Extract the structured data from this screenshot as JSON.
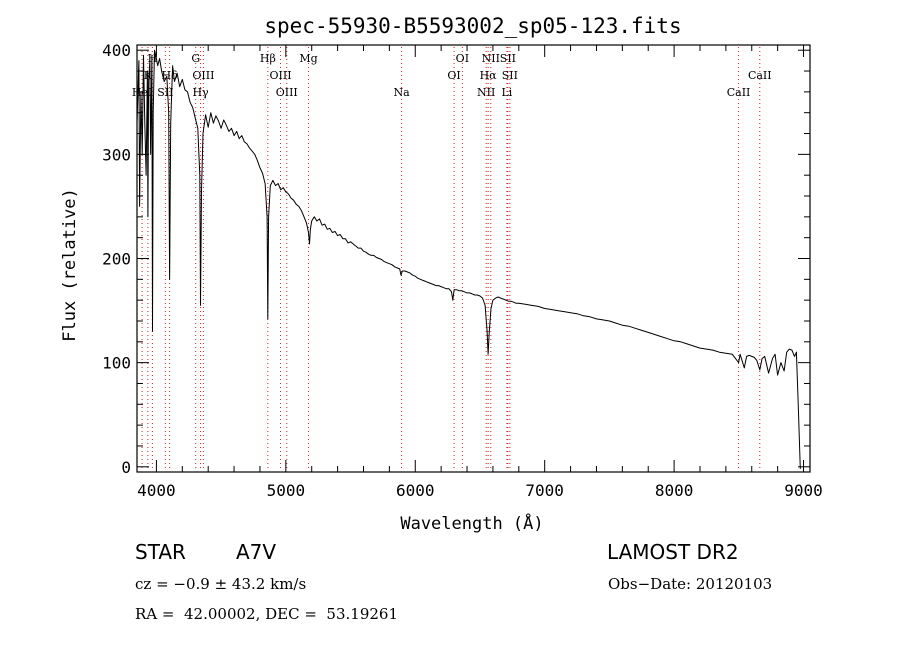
{
  "chart_data": {
    "type": "line",
    "title": "spec-55930-B5593002_sp05-123.fits",
    "xlabel": "Wavelength (Å)",
    "ylabel": "Flux (relative)",
    "xlim": [
      3850,
      9050
    ],
    "ylim": [
      -5,
      405
    ],
    "x_ticks": [
      4000,
      5000,
      6000,
      7000,
      8000,
      9000
    ],
    "x_tick_labels": [
      "4000",
      "5000",
      "6000",
      "7000",
      "8000",
      "9000"
    ],
    "y_ticks": [
      0,
      100,
      200,
      300,
      400
    ],
    "y_tick_labels": [
      "0",
      "100",
      "200",
      "300",
      "400"
    ],
    "grid": false,
    "line_color": "#000000",
    "marker_color": "#cc2222",
    "series": [
      {
        "name": "flux",
        "points": [
          [
            3850,
            330
          ],
          [
            3865,
            390
          ],
          [
            3870,
            250
          ],
          [
            3880,
            360
          ],
          [
            3890,
            300
          ],
          [
            3900,
            395
          ],
          [
            3910,
            330
          ],
          [
            3920,
            280
          ],
          [
            3930,
            380
          ],
          [
            3934,
            240
          ],
          [
            3940,
            370
          ],
          [
            3950,
            390
          ],
          [
            3955,
            300
          ],
          [
            3965,
            395
          ],
          [
            3970,
            130
          ],
          [
            3975,
            340
          ],
          [
            3985,
            400
          ],
          [
            3995,
            395
          ],
          [
            4010,
            385
          ],
          [
            4025,
            392
          ],
          [
            4040,
            380
          ],
          [
            4060,
            370
          ],
          [
            4080,
            375
          ],
          [
            4095,
            340
          ],
          [
            4102,
            180
          ],
          [
            4110,
            330
          ],
          [
            4125,
            385
          ],
          [
            4140,
            370
          ],
          [
            4160,
            378
          ],
          [
            4180,
            365
          ],
          [
            4200,
            372
          ],
          [
            4220,
            362
          ],
          [
            4240,
            360
          ],
          [
            4260,
            350
          ],
          [
            4280,
            345
          ],
          [
            4300,
            335
          ],
          [
            4320,
            325
          ],
          [
            4335,
            280
          ],
          [
            4341,
            155
          ],
          [
            4348,
            265
          ],
          [
            4360,
            320
          ],
          [
            4380,
            338
          ],
          [
            4400,
            326
          ],
          [
            4420,
            340
          ],
          [
            4440,
            330
          ],
          [
            4460,
            337
          ],
          [
            4480,
            332
          ],
          [
            4500,
            325
          ],
          [
            4520,
            333
          ],
          [
            4540,
            328
          ],
          [
            4560,
            322
          ],
          [
            4580,
            325
          ],
          [
            4600,
            318
          ],
          [
            4620,
            322
          ],
          [
            4640,
            315
          ],
          [
            4660,
            318
          ],
          [
            4680,
            312
          ],
          [
            4700,
            310
          ],
          [
            4720,
            306
          ],
          [
            4740,
            303
          ],
          [
            4760,
            300
          ],
          [
            4780,
            294
          ],
          [
            4800,
            287
          ],
          [
            4820,
            282
          ],
          [
            4840,
            272
          ],
          [
            4855,
            240
          ],
          [
            4861,
            142
          ],
          [
            4867,
            240
          ],
          [
            4880,
            270
          ],
          [
            4900,
            275
          ],
          [
            4920,
            270
          ],
          [
            4940,
            272
          ],
          [
            4960,
            266
          ],
          [
            4980,
            268
          ],
          [
            5000,
            264
          ],
          [
            5020,
            262
          ],
          [
            5040,
            258
          ],
          [
            5060,
            256
          ],
          [
            5080,
            252
          ],
          [
            5100,
            250
          ],
          [
            5120,
            246
          ],
          [
            5140,
            240
          ],
          [
            5160,
            234
          ],
          [
            5175,
            225
          ],
          [
            5183,
            214
          ],
          [
            5190,
            228
          ],
          [
            5200,
            236
          ],
          [
            5220,
            240
          ],
          [
            5240,
            236
          ],
          [
            5260,
            238
          ],
          [
            5280,
            232
          ],
          [
            5300,
            233
          ],
          [
            5320,
            228
          ],
          [
            5340,
            229
          ],
          [
            5360,
            225
          ],
          [
            5380,
            226
          ],
          [
            5400,
            222
          ],
          [
            5420,
            223
          ],
          [
            5440,
            219
          ],
          [
            5460,
            219
          ],
          [
            5480,
            215
          ],
          [
            5500,
            216
          ],
          [
            5520,
            214
          ],
          [
            5540,
            212
          ],
          [
            5560,
            210
          ],
          [
            5580,
            210
          ],
          [
            5600,
            207
          ],
          [
            5620,
            206
          ],
          [
            5640,
            204
          ],
          [
            5660,
            203
          ],
          [
            5680,
            203
          ],
          [
            5700,
            201
          ],
          [
            5720,
            200
          ],
          [
            5740,
            199
          ],
          [
            5760,
            197
          ],
          [
            5780,
            196
          ],
          [
            5800,
            195
          ],
          [
            5820,
            194
          ],
          [
            5840,
            192
          ],
          [
            5860,
            191
          ],
          [
            5880,
            190
          ],
          [
            5890,
            184
          ],
          [
            5900,
            188
          ],
          [
            5920,
            188
          ],
          [
            5940,
            187
          ],
          [
            5960,
            186
          ],
          [
            5980,
            184
          ],
          [
            6000,
            183
          ],
          [
            6020,
            181
          ],
          [
            6040,
            180
          ],
          [
            6060,
            179
          ],
          [
            6080,
            178
          ],
          [
            6100,
            177
          ],
          [
            6120,
            176
          ],
          [
            6140,
            175
          ],
          [
            6160,
            174
          ],
          [
            6180,
            174
          ],
          [
            6200,
            173
          ],
          [
            6220,
            172
          ],
          [
            6240,
            171
          ],
          [
            6260,
            171
          ],
          [
            6280,
            168
          ],
          [
            6290,
            160
          ],
          [
            6300,
            170
          ],
          [
            6320,
            170
          ],
          [
            6340,
            169
          ],
          [
            6360,
            169
          ],
          [
            6380,
            168
          ],
          [
            6400,
            167
          ],
          [
            6420,
            167
          ],
          [
            6440,
            166
          ],
          [
            6460,
            165
          ],
          [
            6480,
            165
          ],
          [
            6500,
            164
          ],
          [
            6520,
            162
          ],
          [
            6540,
            155
          ],
          [
            6555,
            130
          ],
          [
            6563,
            108
          ],
          [
            6572,
            130
          ],
          [
            6585,
            152
          ],
          [
            6600,
            160
          ],
          [
            6620,
            162
          ],
          [
            6640,
            163
          ],
          [
            6660,
            162
          ],
          [
            6680,
            161
          ],
          [
            6700,
            160
          ],
          [
            6720,
            159
          ],
          [
            6740,
            159
          ],
          [
            6760,
            158
          ],
          [
            6780,
            157
          ],
          [
            6800,
            157
          ],
          [
            6850,
            156
          ],
          [
            6900,
            155
          ],
          [
            6950,
            154
          ],
          [
            7000,
            152
          ],
          [
            7050,
            151
          ],
          [
            7100,
            150
          ],
          [
            7150,
            149
          ],
          [
            7200,
            148
          ],
          [
            7250,
            147
          ],
          [
            7300,
            145
          ],
          [
            7350,
            144
          ],
          [
            7400,
            142
          ],
          [
            7450,
            141
          ],
          [
            7500,
            140
          ],
          [
            7550,
            138
          ],
          [
            7600,
            136
          ],
          [
            7650,
            135
          ],
          [
            7700,
            133
          ],
          [
            7750,
            131
          ],
          [
            7800,
            129
          ],
          [
            7850,
            127
          ],
          [
            7900,
            125
          ],
          [
            7950,
            123
          ],
          [
            8000,
            121
          ],
          [
            8050,
            120
          ],
          [
            8100,
            118
          ],
          [
            8150,
            116
          ],
          [
            8200,
            114
          ],
          [
            8250,
            113
          ],
          [
            8300,
            112
          ],
          [
            8350,
            110
          ],
          [
            8400,
            109
          ],
          [
            8450,
            108
          ],
          [
            8498,
            100
          ],
          [
            8510,
            108
          ],
          [
            8542,
            95
          ],
          [
            8560,
            106
          ],
          [
            8580,
            107
          ],
          [
            8600,
            106
          ],
          [
            8620,
            105
          ],
          [
            8640,
            102
          ],
          [
            8662,
            93
          ],
          [
            8680,
            104
          ],
          [
            8700,
            106
          ],
          [
            8730,
            90
          ],
          [
            8760,
            104
          ],
          [
            8780,
            108
          ],
          [
            8800,
            88
          ],
          [
            8825,
            100
          ],
          [
            8850,
            92
          ],
          [
            8870,
            110
          ],
          [
            8890,
            113
          ],
          [
            8910,
            112
          ],
          [
            8930,
            106
          ],
          [
            8945,
            110
          ],
          [
            8960,
            55
          ],
          [
            8975,
            -2
          ]
        ]
      }
    ],
    "lines": [
      {
        "label": "HeI",
        "wavelength": 3889,
        "row": 3
      },
      {
        "label": "K",
        "wavelength": 3934,
        "row": 1
      },
      {
        "label": "H",
        "wavelength": 3969,
        "row": 0
      },
      {
        "label": "SII",
        "wavelength": 4069,
        "row": 3
      },
      {
        "label": "Hδ",
        "wavelength": 4102,
        "row": 1
      },
      {
        "label": "G",
        "wavelength": 4304,
        "row": 0
      },
      {
        "label": "OIII",
        "wavelength": 4363,
        "row": 2
      },
      {
        "label": "Hγ",
        "wavelength": 4341,
        "row": 3
      },
      {
        "label": "Hβ",
        "wavelength": 4861,
        "row": 0
      },
      {
        "label": "OIII",
        "wavelength": 4959,
        "row": 1
      },
      {
        "label": "OIII",
        "wavelength": 5007,
        "row": 3
      },
      {
        "label": "Mg",
        "wavelength": 5175,
        "row": 0
      },
      {
        "label": "Na",
        "wavelength": 5894,
        "row": 3
      },
      {
        "label": "OI",
        "wavelength": 6364,
        "row": 0
      },
      {
        "label": "OI",
        "wavelength": 6300,
        "row": 2
      },
      {
        "label": "NII",
        "wavelength": 6584,
        "row": 0
      },
      {
        "label": "Hα",
        "wavelength": 6563,
        "row": 2
      },
      {
        "label": "NII",
        "wavelength": 6548,
        "row": 3
      },
      {
        "label": "SII",
        "wavelength": 6716,
        "row": 0
      },
      {
        "label": "SII",
        "wavelength": 6731,
        "row": 2
      },
      {
        "label": "Li",
        "wavelength": 6708,
        "row": 3
      },
      {
        "label": "CaII",
        "wavelength": 8662,
        "row": 2
      },
      {
        "label": "CaII",
        "wavelength": 8498,
        "row": 3
      }
    ]
  },
  "info": {
    "object_class": "STAR",
    "subclass": "A7V",
    "survey": "LAMOST DR2",
    "cz": "cz = −0.9 ± 43.2 km/s",
    "obs_date": "Obs−Date: 20120103",
    "coords": "RA =  42.00002, DEC =  53.19261"
  }
}
